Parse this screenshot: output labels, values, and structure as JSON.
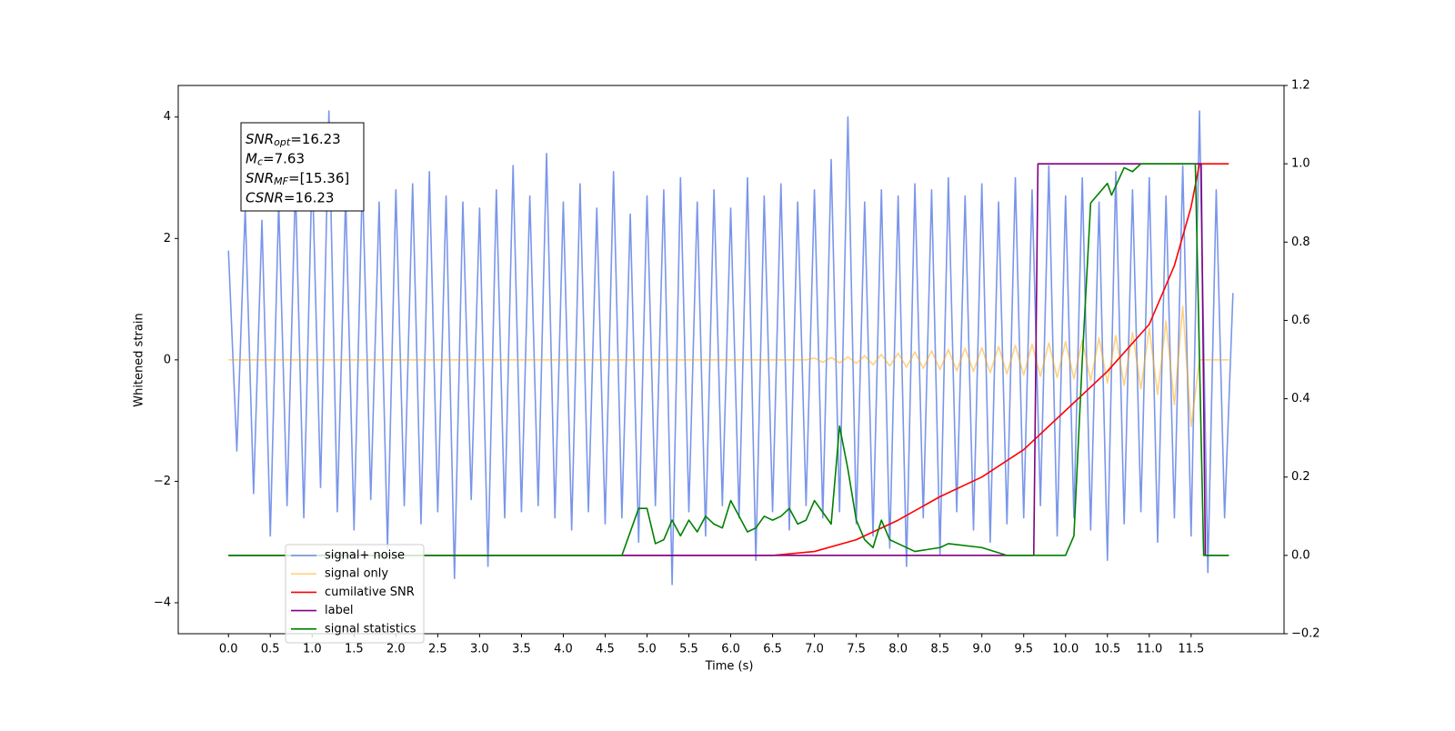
{
  "chart_data": {
    "type": "line",
    "xlabel": "Time (s)",
    "ylabel": "Whitened strain",
    "xlim": [
      -0.6,
      12.61
    ],
    "ylim": [
      -4.51,
      4.52
    ],
    "y2lim": [
      -0.2,
      1.2
    ],
    "xticks": [
      {
        "value": 0,
        "label": "0.0"
      },
      0.5,
      {
        "value": 1,
        "label": "1.0"
      },
      1.5,
      {
        "value": 2,
        "label": "2.0"
      },
      2.5,
      {
        "value": 3,
        "label": "3.0"
      },
      3.5,
      {
        "value": 4,
        "label": "4.0"
      },
      4.5,
      {
        "value": 5,
        "label": "5.0"
      },
      5.5,
      {
        "value": 6,
        "label": "6.0"
      },
      6.5,
      {
        "value": 7,
        "label": "7.0"
      },
      7.5,
      {
        "value": 8,
        "label": "8.0"
      },
      8.5,
      {
        "value": 9,
        "label": "9.0"
      },
      9.5,
      {
        "value": 10,
        "label": "10.0"
      },
      10.5,
      {
        "value": 11,
        "label": "11.0"
      },
      11.5
    ],
    "yticks": [
      {
        "value": -4,
        "label": "−4"
      },
      {
        "value": -2,
        "label": "−2"
      },
      0,
      2,
      4
    ],
    "y2ticks": [
      {
        "value": -0.2,
        "label": "−0.2"
      },
      {
        "value": 0,
        "label": "0.0"
      },
      0.2,
      0.4,
      0.6,
      0.8,
      {
        "value": 1,
        "label": "1.0"
      },
      1.2
    ],
    "annotations": [
      {
        "main": "SNR",
        "sub": "opt",
        "rest": "=16.23"
      },
      {
        "main": "M",
        "sub": "c",
        "rest": "=7.63"
      },
      {
        "main": "SNR",
        "sub": "MF",
        "rest": "=[15.36]"
      },
      {
        "main": "CSNR",
        "sub": "",
        "rest": "=16.23"
      }
    ],
    "legend": "lower left",
    "series": [
      {
        "name": "signal+ noise",
        "color": "#4169e1",
        "alpha": 0.7,
        "x": [
          0,
          0.1,
          0.2,
          0.3,
          0.4,
          0.5,
          0.6,
          0.7,
          0.8,
          0.9,
          1,
          1.1,
          1.2,
          1.3,
          1.4,
          1.5,
          1.6,
          1.7,
          1.8,
          1.9,
          2,
          2.1,
          2.2,
          2.3,
          2.4,
          2.5,
          2.6,
          2.7,
          2.8,
          2.9,
          3,
          3.1,
          3.2,
          3.3,
          3.4,
          3.5,
          3.6,
          3.7,
          3.8,
          3.9,
          4,
          4.1,
          4.2,
          4.3,
          4.4,
          4.5,
          4.6,
          4.7,
          4.8,
          4.9,
          5,
          5.1,
          5.2,
          5.3,
          5.4,
          5.5,
          5.6,
          5.7,
          5.8,
          5.9,
          6,
          6.1,
          6.2,
          6.3,
          6.4,
          6.5,
          6.6,
          6.7,
          6.8,
          6.9,
          7,
          7.1,
          7.2,
          7.3,
          7.4,
          7.5,
          7.6,
          7.7,
          7.8,
          7.9,
          8,
          8.1,
          8.2,
          8.3,
          8.4,
          8.5,
          8.6,
          8.7,
          8.8,
          8.9,
          9,
          9.1,
          9.2,
          9.3,
          9.4,
          9.5,
          9.6,
          9.7,
          9.8,
          9.9,
          10,
          10.1,
          10.2,
          10.3,
          10.4,
          10.5,
          10.6,
          10.7,
          10.8,
          10.9,
          11,
          11.1,
          11.2,
          11.3,
          11.4,
          11.5,
          11.6,
          11.7,
          11.8,
          11.9,
          12
        ],
        "values": [
          1.8,
          -1.5,
          2.5,
          -2.2,
          2.3,
          -2.9,
          2.6,
          -2.4,
          2.9,
          -2.6,
          3.2,
          -2.1,
          4.1,
          -2.5,
          2.7,
          -2.8,
          3.0,
          -2.3,
          2.6,
          -3.1,
          2.8,
          -2.4,
          2.9,
          -2.7,
          3.1,
          -2.5,
          2.7,
          -3.6,
          2.6,
          -2.3,
          2.5,
          -3.4,
          2.8,
          -2.6,
          3.2,
          -2.5,
          2.7,
          -2.4,
          3.4,
          -2.6,
          2.6,
          -2.8,
          2.9,
          -2.5,
          2.5,
          -2.7,
          3.1,
          -2.6,
          2.4,
          -3.0,
          2.7,
          -2.4,
          2.8,
          -3.7,
          3.0,
          -2.5,
          2.6,
          -2.9,
          2.8,
          -2.4,
          2.5,
          -2.6,
          3.0,
          -3.3,
          2.7,
          -2.5,
          2.9,
          -2.8,
          2.6,
          -2.4,
          2.8,
          -2.6,
          3.3,
          -2.5,
          4.0,
          -2.7,
          2.6,
          -2.9,
          2.8,
          -3.1,
          2.7,
          -3.4,
          2.9,
          -2.6,
          2.8,
          -3.2,
          3.0,
          -2.5,
          2.7,
          -2.8,
          2.9,
          -3.0,
          2.6,
          -2.7,
          3.0,
          -2.6,
          2.8,
          -2.4,
          3.2,
          -2.9,
          2.7,
          -2.6,
          3.0,
          -2.8,
          2.6,
          -3.3,
          3.1,
          -2.7,
          2.8,
          -2.5,
          3.0,
          -3.0,
          2.7,
          -2.6,
          3.2,
          -2.9,
          4.1,
          -3.5,
          2.8,
          -2.6,
          1.1
        ]
      },
      {
        "name": "signal only",
        "color": "#ffa500",
        "alpha": 0.5,
        "x": [
          0,
          6.9,
          7,
          7.1,
          7.2,
          7.3,
          7.4,
          7.5,
          7.6,
          7.7,
          7.8,
          7.9,
          8,
          8.1,
          8.2,
          8.3,
          8.4,
          8.5,
          8.6,
          8.7,
          8.8,
          8.9,
          9,
          9.1,
          9.2,
          9.3,
          9.4,
          9.5,
          9.6,
          9.7,
          9.8,
          9.9,
          10,
          10.1,
          10.2,
          10.3,
          10.4,
          10.5,
          10.6,
          10.7,
          10.8,
          10.9,
          11,
          11.1,
          11.2,
          11.3,
          11.4,
          11.5,
          11.6,
          11.95
        ],
        "values": [
          0,
          0,
          0.03,
          -0.04,
          0.04,
          -0.05,
          0.05,
          -0.06,
          0.07,
          -0.08,
          0.09,
          -0.1,
          0.11,
          -0.12,
          0.13,
          -0.14,
          0.15,
          -0.16,
          0.17,
          -0.18,
          0.19,
          -0.19,
          0.2,
          -0.21,
          0.22,
          -0.23,
          0.24,
          -0.25,
          0.26,
          -0.27,
          0.28,
          -0.29,
          0.3,
          -0.31,
          0.32,
          -0.34,
          0.36,
          -0.38,
          0.4,
          -0.42,
          0.45,
          -0.48,
          0.52,
          -0.57,
          0.64,
          -0.74,
          0.88,
          -1.1,
          0,
          0
        ]
      },
      {
        "name": "cumilative SNR",
        "color": "#ff0000",
        "axis": "y2",
        "x": [
          0,
          6.5,
          7,
          7.5,
          8,
          8.5,
          9,
          9.5,
          10,
          10.5,
          11,
          11.3,
          11.5,
          11.6,
          11.95
        ],
        "values": [
          0,
          0,
          0.01,
          0.04,
          0.09,
          0.15,
          0.2,
          0.27,
          0.37,
          0.47,
          0.59,
          0.74,
          0.89,
          1,
          1
        ]
      },
      {
        "name": "label",
        "color": "#800080",
        "axis": "y2",
        "x": [
          0,
          9.62,
          9.67,
          11.62,
          11.67,
          11.95
        ],
        "values": [
          0,
          0,
          1,
          1,
          0,
          0
        ]
      },
      {
        "name": "signal statistics",
        "color": "#008000",
        "axis": "y2",
        "x": [
          0,
          4.7,
          4.9,
          5,
          5.1,
          5.2,
          5.3,
          5.4,
          5.5,
          5.6,
          5.7,
          5.8,
          5.9,
          6,
          6.1,
          6.2,
          6.3,
          6.4,
          6.5,
          6.6,
          6.7,
          6.8,
          6.9,
          7,
          7.1,
          7.2,
          7.3,
          7.4,
          7.5,
          7.6,
          7.7,
          7.8,
          7.9,
          8,
          8.2,
          8.5,
          8.6,
          9,
          9.3,
          10,
          10.1,
          10.2,
          10.3,
          10.5,
          10.55,
          10.7,
          10.8,
          10.9,
          11.55,
          11.65,
          11.95
        ],
        "values": [
          0,
          0,
          0.12,
          0.12,
          0.03,
          0.04,
          0.09,
          0.05,
          0.09,
          0.06,
          0.1,
          0.08,
          0.07,
          0.14,
          0.1,
          0.06,
          0.07,
          0.1,
          0.09,
          0.1,
          0.12,
          0.08,
          0.09,
          0.14,
          0.11,
          0.08,
          0.33,
          0.22,
          0.09,
          0.04,
          0.02,
          0.09,
          0.04,
          0.03,
          0.01,
          0.02,
          0.03,
          0.02,
          0,
          0,
          0.05,
          0.5,
          0.9,
          0.95,
          0.92,
          0.99,
          0.98,
          1,
          1,
          0,
          0
        ]
      }
    ]
  }
}
